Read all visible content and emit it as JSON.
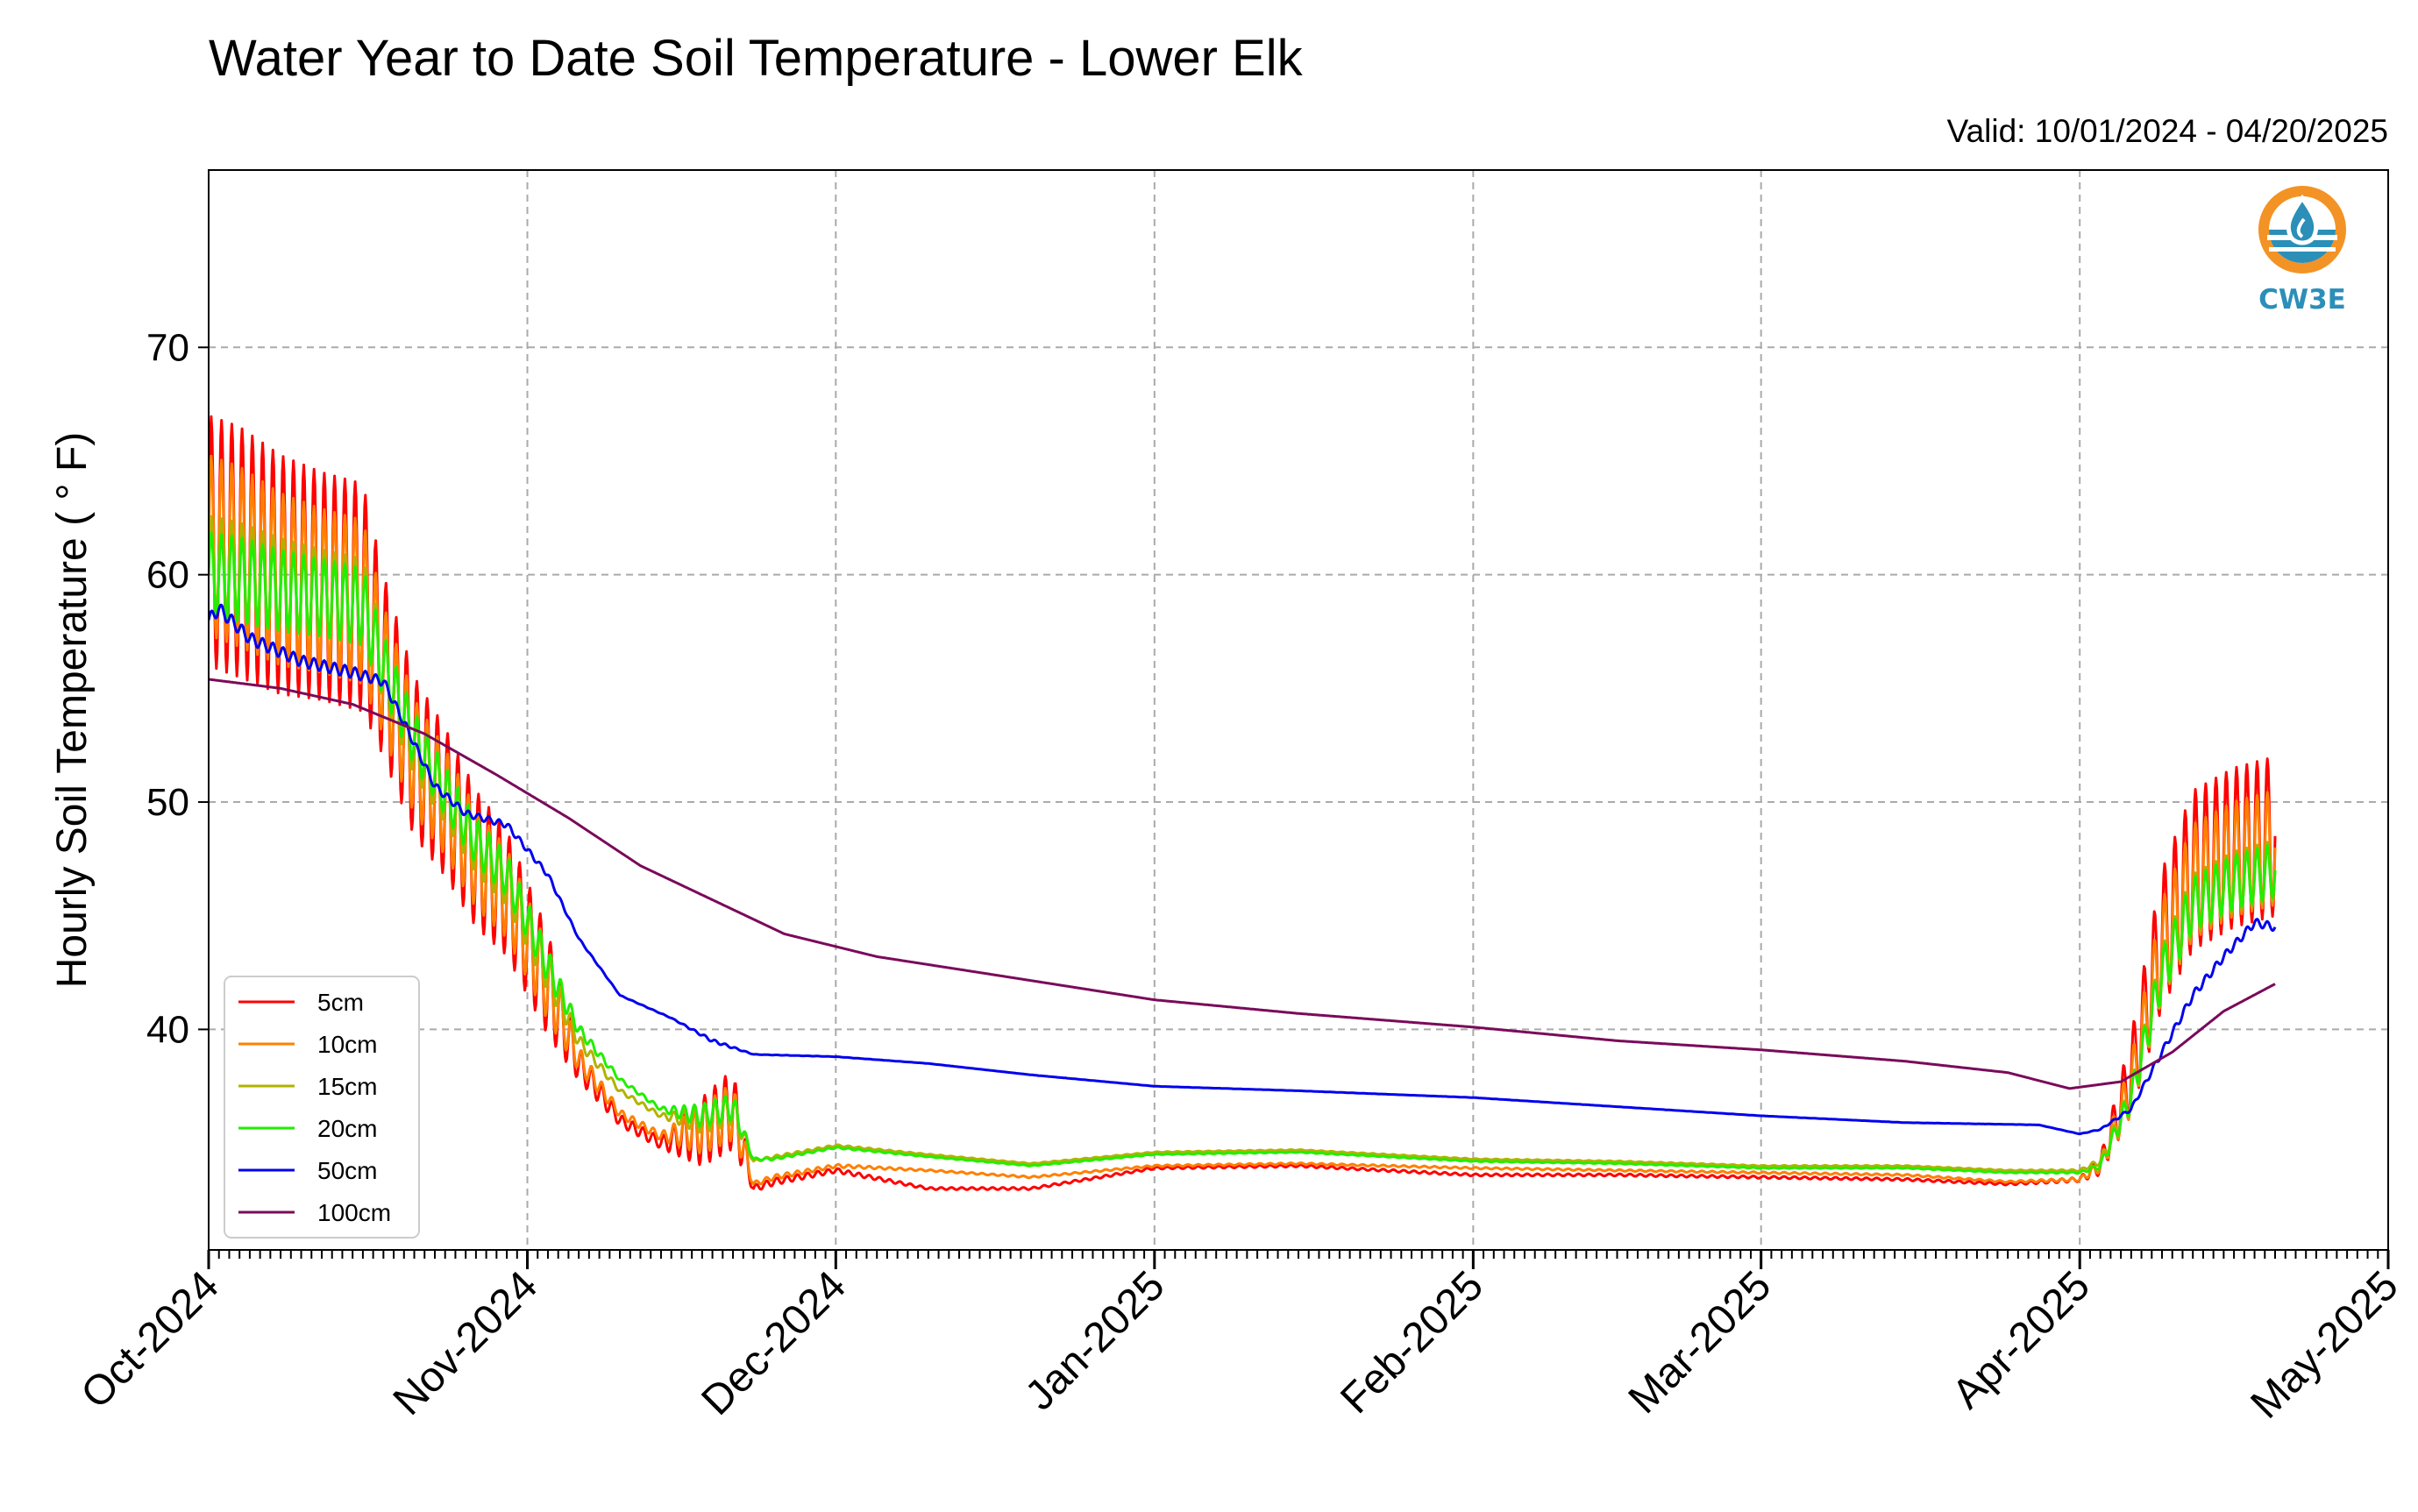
{
  "title": "Water Year to Date Soil Temperature - Lower Elk",
  "valid": "Valid: 10/01/2024 - 04/20/2025",
  "logo": {
    "text": "CW3E",
    "color": "#2b8fb8",
    "accent": "#f39325",
    "icon": "water-drop-logo-icon"
  },
  "chart_data": {
    "type": "line",
    "title": "Water Year to Date Soil Temperature - Lower Elk",
    "xlabel": "",
    "ylabel": "Hourly Soil Temperature ($^\\circ$F)",
    "ylabel_display": "Hourly Soil Temperature ( ° F)",
    "x_type": "date",
    "xlim": [
      "2024-10-01",
      "2025-05-01"
    ],
    "ylim": [
      30.3,
      77.8
    ],
    "yticks": [
      40,
      50,
      60,
      70
    ],
    "xticks": [
      {
        "date": "2024-10-01",
        "label": "Oct-2024"
      },
      {
        "date": "2024-11-01",
        "label": "Nov-2024"
      },
      {
        "date": "2024-12-01",
        "label": "Dec-2024"
      },
      {
        "date": "2025-01-01",
        "label": "Jan-2025"
      },
      {
        "date": "2025-02-01",
        "label": "Feb-2025"
      },
      {
        "date": "2025-03-01",
        "label": "Mar-2025"
      },
      {
        "date": "2025-04-01",
        "label": "Apr-2025"
      },
      {
        "date": "2025-05-01",
        "label": "May-2025"
      }
    ],
    "grid": true,
    "legend_position": "lower-left",
    "series": [
      {
        "name": "5cm",
        "color": "#ff0000",
        "amplitude_scale": 1.0,
        "x": [
          "2024-10-01",
          "2024-10-04",
          "2024-10-08",
          "2024-10-12",
          "2024-10-16",
          "2024-10-18",
          "2024-10-21",
          "2024-10-24",
          "2024-10-27",
          "2024-10-30",
          "2024-11-01",
          "2024-11-03",
          "2024-11-06",
          "2024-11-10",
          "2024-11-14",
          "2024-11-18",
          "2024-11-21",
          "2024-11-23",
          "2024-11-25",
          "2024-12-01",
          "2024-12-10",
          "2024-12-20",
          "2025-01-01",
          "2025-01-15",
          "2025-02-01",
          "2025-02-15",
          "2025-03-01",
          "2025-03-15",
          "2025-03-25",
          "2025-04-01",
          "2025-04-03",
          "2025-04-06",
          "2025-04-09",
          "2025-04-12",
          "2025-04-16",
          "2025-04-20"
        ],
        "y": [
          61.5,
          61.0,
          60.0,
          59.5,
          59.0,
          56.0,
          52.0,
          50.0,
          47.5,
          46.0,
          44.0,
          42.0,
          38.5,
          36.0,
          35.0,
          35.5,
          36.5,
          33.0,
          33.3,
          33.8,
          33.0,
          33.0,
          33.9,
          34.0,
          33.6,
          33.6,
          33.5,
          33.4,
          33.2,
          33.4,
          34.0,
          38.0,
          44.0,
          47.0,
          48.0,
          48.5
        ],
        "amp": [
          11.0,
          11.0,
          10.5,
          10.0,
          10.0,
          8.0,
          7.0,
          6.5,
          6.0,
          5.5,
          5.0,
          4.5,
          1.5,
          0.5,
          0.5,
          3.0,
          3.5,
          0.3,
          0.3,
          0.2,
          0.1,
          0.1,
          0.1,
          0.1,
          0.1,
          0.1,
          0.1,
          0.1,
          0.1,
          0.2,
          0.8,
          3.5,
          6.0,
          7.0,
          7.0,
          7.0
        ]
      },
      {
        "name": "10cm",
        "color": "#ff8000",
        "amplitude_scale": 0.72,
        "x": [
          "2024-10-01",
          "2024-10-04",
          "2024-10-08",
          "2024-10-12",
          "2024-10-16",
          "2024-10-18",
          "2024-10-21",
          "2024-10-24",
          "2024-10-27",
          "2024-10-30",
          "2024-11-01",
          "2024-11-03",
          "2024-11-06",
          "2024-11-10",
          "2024-11-14",
          "2024-11-18",
          "2024-11-21",
          "2024-11-23",
          "2024-11-25",
          "2024-12-01",
          "2024-12-10",
          "2024-12-20",
          "2025-01-01",
          "2025-01-15",
          "2025-02-01",
          "2025-02-15",
          "2025-03-01",
          "2025-03-15",
          "2025-03-25",
          "2025-04-01",
          "2025-04-03",
          "2025-04-06",
          "2025-04-09",
          "2025-04-12",
          "2025-04-16",
          "2025-04-20"
        ],
        "y": [
          61.3,
          60.8,
          59.8,
          59.3,
          58.8,
          55.8,
          52.0,
          50.0,
          47.5,
          46.0,
          44.0,
          42.0,
          38.7,
          36.3,
          35.3,
          35.6,
          36.4,
          33.2,
          33.5,
          34.0,
          33.8,
          33.5,
          34.0,
          34.1,
          33.9,
          33.8,
          33.7,
          33.6,
          33.3,
          33.4,
          34.0,
          37.5,
          43.5,
          46.5,
          47.5,
          48.0
        ],
        "amp": [
          11.0,
          11.0,
          10.5,
          10.0,
          10.0,
          8.0,
          7.0,
          6.5,
          6.0,
          5.5,
          5.0,
          4.5,
          1.5,
          0.5,
          0.5,
          3.0,
          3.5,
          0.3,
          0.3,
          0.2,
          0.1,
          0.1,
          0.1,
          0.1,
          0.1,
          0.1,
          0.1,
          0.1,
          0.1,
          0.2,
          0.8,
          3.5,
          6.0,
          7.0,
          7.0,
          7.0
        ]
      },
      {
        "name": "15cm",
        "color": "#b2b200",
        "amplitude_scale": 0.38,
        "x": [
          "2024-10-01",
          "2024-10-04",
          "2024-10-08",
          "2024-10-12",
          "2024-10-16",
          "2024-10-18",
          "2024-10-21",
          "2024-10-24",
          "2024-10-27",
          "2024-10-30",
          "2024-11-01",
          "2024-11-03",
          "2024-11-06",
          "2024-11-10",
          "2024-11-14",
          "2024-11-18",
          "2024-11-21",
          "2024-11-23",
          "2024-11-25",
          "2024-12-01",
          "2024-12-10",
          "2024-12-20",
          "2025-01-01",
          "2025-01-15",
          "2025-02-01",
          "2025-02-15",
          "2025-03-01",
          "2025-03-15",
          "2025-03-25",
          "2025-04-01",
          "2025-04-03",
          "2025-04-06",
          "2025-04-09",
          "2025-04-12",
          "2025-04-16",
          "2025-04-20"
        ],
        "y": [
          60.5,
          60.2,
          59.6,
          59.2,
          58.8,
          56.0,
          52.5,
          50.3,
          48.0,
          46.5,
          44.5,
          42.5,
          39.5,
          37.3,
          36.2,
          36.0,
          36.5,
          34.2,
          34.4,
          34.9,
          34.5,
          34.1,
          34.6,
          34.7,
          34.3,
          34.2,
          34.0,
          34.0,
          33.8,
          33.8,
          34.2,
          37.0,
          42.5,
          45.5,
          46.5,
          47.0
        ],
        "amp": [
          11.0,
          11.0,
          10.5,
          10.0,
          10.0,
          8.0,
          7.0,
          6.5,
          6.0,
          5.5,
          5.0,
          4.5,
          1.5,
          0.5,
          0.5,
          3.0,
          3.5,
          0.3,
          0.3,
          0.2,
          0.1,
          0.1,
          0.1,
          0.1,
          0.1,
          0.1,
          0.1,
          0.1,
          0.1,
          0.2,
          0.8,
          3.5,
          6.0,
          7.0,
          7.0,
          7.0
        ]
      },
      {
        "name": "20cm",
        "color": "#22ee00",
        "amplitude_scale": 0.34,
        "x": [
          "2024-10-01",
          "2024-10-04",
          "2024-10-08",
          "2024-10-12",
          "2024-10-16",
          "2024-10-18",
          "2024-10-21",
          "2024-10-24",
          "2024-10-27",
          "2024-10-30",
          "2024-11-01",
          "2024-11-03",
          "2024-11-06",
          "2024-11-10",
          "2024-11-14",
          "2024-11-18",
          "2024-11-21",
          "2024-11-23",
          "2024-11-25",
          "2024-12-01",
          "2024-12-10",
          "2024-12-20",
          "2025-01-01",
          "2025-01-15",
          "2025-02-01",
          "2025-02-15",
          "2025-03-01",
          "2025-03-15",
          "2025-03-25",
          "2025-04-01",
          "2025-04-03",
          "2025-04-06",
          "2025-04-09",
          "2025-04-12",
          "2025-04-16",
          "2025-04-20"
        ],
        "y": [
          60.0,
          59.8,
          59.3,
          59.0,
          58.6,
          56.0,
          52.8,
          50.5,
          48.3,
          46.8,
          44.8,
          42.8,
          40.0,
          37.8,
          36.5,
          36.2,
          36.6,
          34.3,
          34.3,
          34.8,
          34.4,
          34.0,
          34.5,
          34.6,
          34.2,
          34.1,
          33.9,
          33.9,
          33.7,
          33.7,
          34.0,
          37.0,
          42.5,
          45.5,
          46.5,
          47.0
        ],
        "amp": [
          11.0,
          11.0,
          10.5,
          10.0,
          10.0,
          8.0,
          7.0,
          6.5,
          6.0,
          5.5,
          5.0,
          4.5,
          1.5,
          0.5,
          0.5,
          3.0,
          3.5,
          0.3,
          0.3,
          0.2,
          0.1,
          0.1,
          0.1,
          0.1,
          0.1,
          0.1,
          0.1,
          0.1,
          0.1,
          0.2,
          0.8,
          3.5,
          6.0,
          7.0,
          7.0,
          7.0
        ]
      },
      {
        "name": "50cm",
        "color": "#0000ee",
        "amplitude_scale": 0.05,
        "x": [
          "2024-10-01",
          "2024-10-02",
          "2024-10-05",
          "2024-10-10",
          "2024-10-15",
          "2024-10-18",
          "2024-10-20",
          "2024-10-23",
          "2024-10-26",
          "2024-10-30",
          "2024-11-03",
          "2024-11-06",
          "2024-11-10",
          "2024-11-15",
          "2024-11-19",
          "2024-11-23",
          "2024-12-01",
          "2024-12-10",
          "2024-12-20",
          "2025-01-01",
          "2025-01-15",
          "2025-02-01",
          "2025-02-15",
          "2025-03-01",
          "2025-03-15",
          "2025-03-28",
          "2025-04-01",
          "2025-04-03",
          "2025-04-06",
          "2025-04-09",
          "2025-04-12",
          "2025-04-15",
          "2025-04-18",
          "2025-04-20"
        ],
        "y": [
          58.0,
          58.5,
          57.2,
          56.2,
          55.7,
          55.3,
          53.5,
          50.7,
          49.5,
          49.0,
          46.8,
          44.0,
          41.5,
          40.5,
          39.5,
          38.9,
          38.8,
          38.5,
          38.0,
          37.5,
          37.3,
          37.0,
          36.6,
          36.2,
          35.9,
          35.8,
          35.4,
          35.6,
          36.5,
          39.0,
          41.5,
          43.2,
          44.7,
          44.5
        ],
        "amp": [
          11.0,
          11.0,
          10.5,
          10.0,
          10.0,
          8.0,
          7.0,
          6.5,
          6.0,
          5.5,
          4.5,
          1.5,
          0.5,
          0.5,
          3.0,
          0.3,
          0.2,
          0.1,
          0.1,
          0.1,
          0.1,
          0.1,
          0.1,
          0.1,
          0.1,
          0.1,
          0.2,
          0.8,
          3.5,
          6.0,
          7.0,
          7.0,
          7.0,
          7.0
        ]
      },
      {
        "name": "100cm",
        "color": "#7a0a5a",
        "amplitude_scale": 0,
        "x": [
          "2024-10-01",
          "2024-10-08",
          "2024-10-15",
          "2024-10-22",
          "2024-10-29",
          "2024-11-05",
          "2024-11-12",
          "2024-11-19",
          "2024-11-26",
          "2024-12-05",
          "2024-12-15",
          "2025-01-01",
          "2025-01-15",
          "2025-02-01",
          "2025-02-15",
          "2025-03-01",
          "2025-03-15",
          "2025-03-25",
          "2025-03-31",
          "2025-04-05",
          "2025-04-10",
          "2025-04-15",
          "2025-04-20"
        ],
        "y": [
          55.4,
          55.0,
          54.3,
          53.0,
          51.2,
          49.3,
          47.2,
          45.7,
          44.2,
          43.2,
          42.5,
          41.3,
          40.7,
          40.1,
          39.5,
          39.1,
          38.6,
          38.1,
          37.4,
          37.7,
          39.0,
          40.8,
          42.0
        ],
        "amp": [
          0,
          0,
          0,
          0,
          0,
          0,
          0,
          0,
          0,
          0,
          0,
          0,
          0,
          0,
          0,
          0,
          0,
          0,
          0,
          0,
          0,
          0,
          0
        ]
      }
    ]
  }
}
